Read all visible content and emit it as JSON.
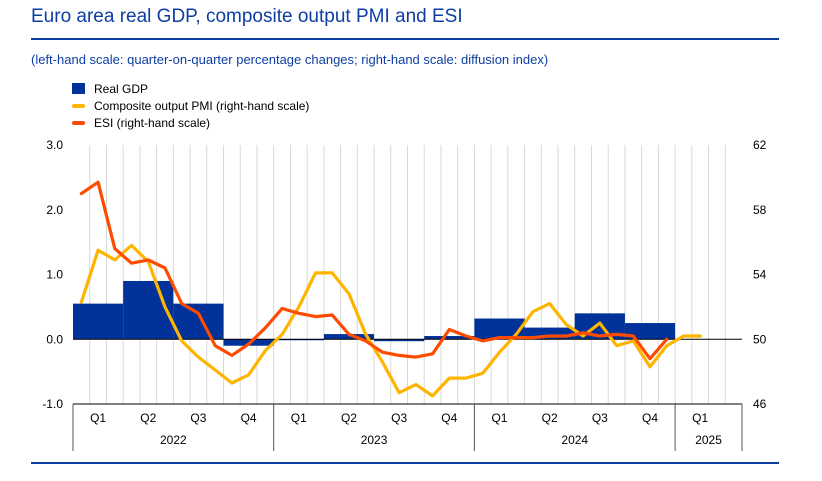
{
  "title": "Euro area real GDP, composite output PMI and ESI",
  "subtitle": "(left-hand scale: quarter-on-quarter percentage changes; right-hand scale: diffusion index)",
  "colors": {
    "gdp": "#003299",
    "pmi": "#ffb400",
    "esi": "#ff4b00",
    "grid": "#d9d9d9",
    "brand": "#0e3ea3"
  },
  "legend": [
    {
      "label": "Real GDP",
      "kind": "bar",
      "color": "#003299"
    },
    {
      "label": "Composite output PMI (right-hand scale)",
      "kind": "line",
      "color": "#ffb400"
    },
    {
      "label": "ESI (right-hand scale)",
      "kind": "line",
      "color": "#ff4b00"
    }
  ],
  "chart_data": {
    "type": "bar+line",
    "x_axis": {
      "months_shown": 40,
      "quarters": [
        "Q1",
        "Q2",
        "Q3",
        "Q4",
        "Q1",
        "Q2",
        "Q3",
        "Q4",
        "Q1",
        "Q2",
        "Q3",
        "Q4",
        "Q1"
      ],
      "years": [
        {
          "label": "2022",
          "start_month": 0,
          "months": 12
        },
        {
          "label": "2023",
          "start_month": 12,
          "months": 12
        },
        {
          "label": "2024",
          "start_month": 24,
          "months": 12
        },
        {
          "label": "2025",
          "start_month": 36,
          "months": 4
        }
      ]
    },
    "left_axis": {
      "min": -1.0,
      "max": 3.0,
      "ticks": [
        "-1.0",
        "0.0",
        "1.0",
        "2.0",
        "3.0"
      ],
      "tick_values": [
        -1,
        0,
        1,
        2,
        3
      ]
    },
    "right_axis": {
      "min": 46,
      "max": 62,
      "ticks": [
        "46",
        "50",
        "54",
        "58",
        "62"
      ],
      "tick_values": [
        46,
        50,
        54,
        58,
        62
      ]
    },
    "series": [
      {
        "name": "Real GDP",
        "kind": "bar",
        "axis": "left",
        "quarters": [
          "2022 Q1",
          "2022 Q2",
          "2022 Q3",
          "2022 Q4",
          "2023 Q1",
          "2023 Q2",
          "2023 Q3",
          "2023 Q4",
          "2024 Q1",
          "2024 Q2",
          "2024 Q3",
          "2024 Q4"
        ],
        "values": [
          0.55,
          0.9,
          0.55,
          -0.1,
          0.0,
          0.08,
          -0.03,
          0.05,
          0.32,
          0.18,
          0.4,
          0.25
        ]
      },
      {
        "name": "Composite output PMI (right-hand scale)",
        "kind": "line",
        "axis": "right",
        "values": [
          52.3,
          55.5,
          54.9,
          55.8,
          54.8,
          52.0,
          49.9,
          48.9,
          48.1,
          47.3,
          47.8,
          49.3,
          50.3,
          52.0,
          54.1,
          54.1,
          52.8,
          50.3,
          48.6,
          46.7,
          47.2,
          46.5,
          47.6,
          47.6,
          47.9,
          49.2,
          50.3,
          51.7,
          52.2,
          50.9,
          50.2,
          51.0,
          49.6,
          49.9,
          48.3,
          49.6,
          50.2,
          50.2
        ]
      },
      {
        "name": "ESI (right-hand scale)",
        "kind": "line",
        "axis": "right",
        "values": [
          59.0,
          59.7,
          55.6,
          54.7,
          54.9,
          54.4,
          52.2,
          51.6,
          49.6,
          49.0,
          49.7,
          50.7,
          51.9,
          51.6,
          51.4,
          51.5,
          50.3,
          49.9,
          49.2,
          49.0,
          48.9,
          49.1,
          50.6,
          50.2,
          49.9,
          50.1,
          50.1,
          50.1,
          50.2,
          50.2,
          50.4,
          50.2,
          50.3,
          50.2,
          48.8,
          50.0
        ]
      }
    ],
    "grid": "vertical monthly lines",
    "legend_position": "top-left"
  }
}
